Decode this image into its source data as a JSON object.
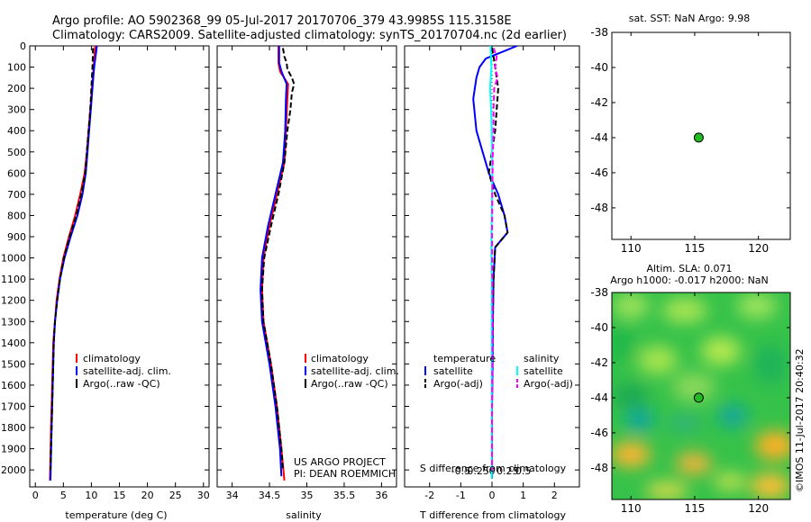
{
  "title_line1": "Argo profile: AO 5902368_99 05-Jul-2017 20170706_379 43.9985S 115.3158E",
  "title_line2": "Climatology: CARS2009. Satellite-adjusted climatology: synTS_20170704.nc (2d earlier)",
  "watermark": "©IMOS 11-Jul-2017 20:40:32",
  "colors": {
    "climatology": "#ff0000",
    "satellite": "#0000ff",
    "argo": "#000000",
    "sat_salinity": "#00ffff",
    "argo_salinity": "#ff00ff",
    "point": "#22bb22"
  },
  "chart_data": [
    {
      "type": "line",
      "id": "temperature",
      "xlabel": "temperature (deg C)",
      "xlim": [
        -1,
        31
      ],
      "ylim": [
        2080,
        0
      ],
      "xticks": [
        0,
        5,
        10,
        15,
        20,
        25,
        30
      ],
      "yticks": [
        0,
        100,
        200,
        300,
        400,
        500,
        600,
        700,
        800,
        900,
        1000,
        1100,
        1200,
        1300,
        1400,
        1500,
        1600,
        1700,
        1800,
        1900,
        2000
      ],
      "legend": [
        "climatology",
        "satellite-adj. clim.",
        "Argo(..raw -QC)"
      ],
      "series": [
        {
          "name": "climatology",
          "color": "#ff0000",
          "depth": [
            0,
            100,
            200,
            300,
            400,
            500,
            600,
            700,
            800,
            900,
            1000,
            1100,
            1200,
            1300,
            1400,
            1600,
            1800,
            2050
          ],
          "values": [
            10.7,
            10.4,
            10.1,
            9.8,
            9.5,
            9.2,
            8.8,
            8.0,
            7.1,
            6.0,
            5.0,
            4.3,
            3.8,
            3.5,
            3.2,
            3.0,
            2.8,
            2.6
          ]
        },
        {
          "name": "satellite-adj. clim.",
          "color": "#0000ff",
          "depth": [
            0,
            100,
            200,
            300,
            400,
            500,
            600,
            700,
            800,
            900,
            1000,
            1100,
            1200,
            1300,
            1400,
            1600,
            1800,
            2050
          ],
          "values": [
            11.0,
            10.5,
            10.2,
            9.9,
            9.6,
            9.3,
            9.0,
            8.4,
            7.5,
            6.3,
            5.2,
            4.4,
            3.9,
            3.5,
            3.3,
            3.1,
            2.9,
            2.7
          ]
        },
        {
          "name": "Argo(..raw -QC)",
          "color": "#000000",
          "dashed": true,
          "depth": [
            10,
            100,
            200,
            300,
            400,
            500,
            600,
            700,
            800,
            900,
            1000,
            1100,
            1200,
            1300,
            1400,
            1600,
            1800,
            2000
          ],
          "values": [
            10.3,
            10.2,
            10.0,
            9.8,
            9.5,
            9.2,
            8.9,
            8.2,
            7.3,
            6.1,
            5.1,
            4.4,
            3.9,
            3.5,
            3.3,
            3.1,
            2.9,
            2.7
          ]
        }
      ]
    },
    {
      "type": "line",
      "id": "salinity",
      "xlabel": "salinity",
      "xlim": [
        33.8,
        36.2
      ],
      "ylim": [
        2080,
        0
      ],
      "xticks": [
        34,
        34.5,
        35,
        35.5,
        36
      ],
      "legend": [
        "climatology",
        "satellite-adj. clim.",
        "Argo(..raw -QC)"
      ],
      "annotation": [
        "US ARGO PROJECT",
        "PI: DEAN ROEMMICH"
      ],
      "series": [
        {
          "name": "climatology",
          "color": "#ff0000",
          "depth": [
            0,
            80,
            120,
            180,
            250,
            400,
            550,
            700,
            850,
            1000,
            1150,
            1300,
            1500,
            1700,
            1900,
            2050
          ],
          "values": [
            34.62,
            34.62,
            34.64,
            34.75,
            34.74,
            34.72,
            34.7,
            34.6,
            34.5,
            34.42,
            34.4,
            34.42,
            34.52,
            34.6,
            34.66,
            34.7
          ]
        },
        {
          "name": "satellite-adj. clim.",
          "color": "#0000ff",
          "depth": [
            0,
            80,
            120,
            180,
            250,
            400,
            550,
            700,
            850,
            1000,
            1150,
            1300,
            1500,
            1700,
            1900,
            2030
          ],
          "values": [
            34.63,
            34.63,
            34.66,
            34.73,
            34.72,
            34.71,
            34.68,
            34.58,
            34.48,
            34.4,
            34.38,
            34.4,
            34.5,
            34.58,
            34.64,
            34.66
          ]
        },
        {
          "name": "Argo(..raw -QC)",
          "color": "#000000",
          "dashed": true,
          "depth": [
            10,
            50,
            80,
            110,
            150,
            180,
            220,
            300,
            400,
            550,
            700,
            850,
            1000,
            1150,
            1300,
            1500,
            1700,
            1900,
            2000
          ],
          "values": [
            34.68,
            34.7,
            34.73,
            34.74,
            34.8,
            34.83,
            34.8,
            34.78,
            34.74,
            34.7,
            34.62,
            34.52,
            34.43,
            34.4,
            34.42,
            34.52,
            34.6,
            34.66,
            34.68
          ]
        }
      ]
    },
    {
      "type": "line",
      "id": "difference",
      "xlabel": "T difference from climatology",
      "x2label": "S difference from climatology",
      "xlim": [
        -2.8,
        2.8
      ],
      "ylim": [
        2080,
        0
      ],
      "xticks": [
        -2,
        -1,
        0,
        1,
        2
      ],
      "x2ticks": [
        "-0.5",
        "-0.25",
        "0",
        "0.25",
        "0.5"
      ],
      "legend_temperature": [
        "temperature",
        "satellite",
        "Argo(-adj)"
      ],
      "legend_salinity": [
        "salinity",
        "satellite",
        "Argo(-adj)"
      ],
      "series": [
        {
          "name": "temperature satellite",
          "color": "#0000ff",
          "depth": [
            0,
            30,
            60,
            100,
            150,
            250,
            400,
            500,
            600,
            700,
            800,
            880,
            950,
            1100,
            1300,
            1500,
            1700,
            1900,
            2040
          ],
          "values": [
            0.8,
            0.3,
            -0.2,
            -0.4,
            -0.5,
            -0.6,
            -0.5,
            -0.3,
            -0.1,
            0.2,
            0.4,
            0.5,
            0.1,
            0.05,
            0.03,
            0.02,
            0.0,
            0.0,
            0.0
          ]
        },
        {
          "name": "temperature Argo(-adj)",
          "color": "#000000",
          "dashed": true,
          "depth": [
            10,
            50,
            100,
            200,
            300,
            400,
            500,
            600,
            700,
            800,
            880,
            950,
            1100,
            1300,
            1500,
            1700,
            1900,
            2000
          ],
          "values": [
            0.0,
            0.05,
            0.1,
            0.2,
            0.15,
            0.1,
            0.0,
            -0.1,
            0.1,
            0.4,
            0.5,
            0.1,
            0.05,
            0.02,
            0.01,
            0.0,
            0.0,
            0.0
          ]
        },
        {
          "name": "salinity satellite",
          "color": "#00ffff",
          "depth": [
            0,
            100,
            200,
            300,
            400,
            500,
            600,
            700,
            800,
            900,
            1000,
            1100,
            1300,
            1500,
            1700,
            1900,
            2040
          ],
          "values": [
            -0.05,
            -0.02,
            -0.06,
            -0.03,
            -0.01,
            0.0,
            0.01,
            0.0,
            -0.01,
            -0.02,
            -0.02,
            -0.01,
            -0.01,
            -0.01,
            -0.01,
            -0.01,
            -0.01
          ]
        },
        {
          "name": "salinity Argo(-adj)",
          "color": "#ff00ff",
          "dashed": true,
          "depth": [
            10,
            50,
            100,
            150,
            200,
            300,
            400,
            500,
            700,
            900,
            1100,
            1300,
            1500,
            1700,
            1900,
            2000
          ],
          "values": [
            0.05,
            0.15,
            0.1,
            0.18,
            0.07,
            0.05,
            0.05,
            0.03,
            0.01,
            0.0,
            0.01,
            0.02,
            0.01,
            0.0,
            0.0,
            0.0
          ]
        }
      ]
    },
    {
      "type": "scatter",
      "id": "sst_map",
      "title": "sat. SST: NaN Argo: 9.98",
      "xlim": [
        108.5,
        122.5
      ],
      "ylim": [
        -49.8,
        -38
      ],
      "xticks": [
        110,
        115,
        120
      ],
      "yticks": [
        -48,
        -46,
        -44,
        -42,
        -40,
        -38
      ],
      "points": [
        {
          "x": 115.3158,
          "y": -43.9985
        }
      ]
    },
    {
      "type": "heatmap",
      "id": "sla_map",
      "title_line1": "Altim. SLA: 0.071",
      "title_line2": "Argo h1000: -0.017 h2000: NaN",
      "xlim": [
        108.5,
        122.5
      ],
      "ylim": [
        -49.8,
        -38
      ],
      "xticks": [
        110,
        115,
        120
      ],
      "yticks": [
        -48,
        -46,
        -44,
        -42,
        -40,
        -38
      ],
      "points": [
        {
          "x": 115.3158,
          "y": -43.9985
        }
      ]
    }
  ]
}
